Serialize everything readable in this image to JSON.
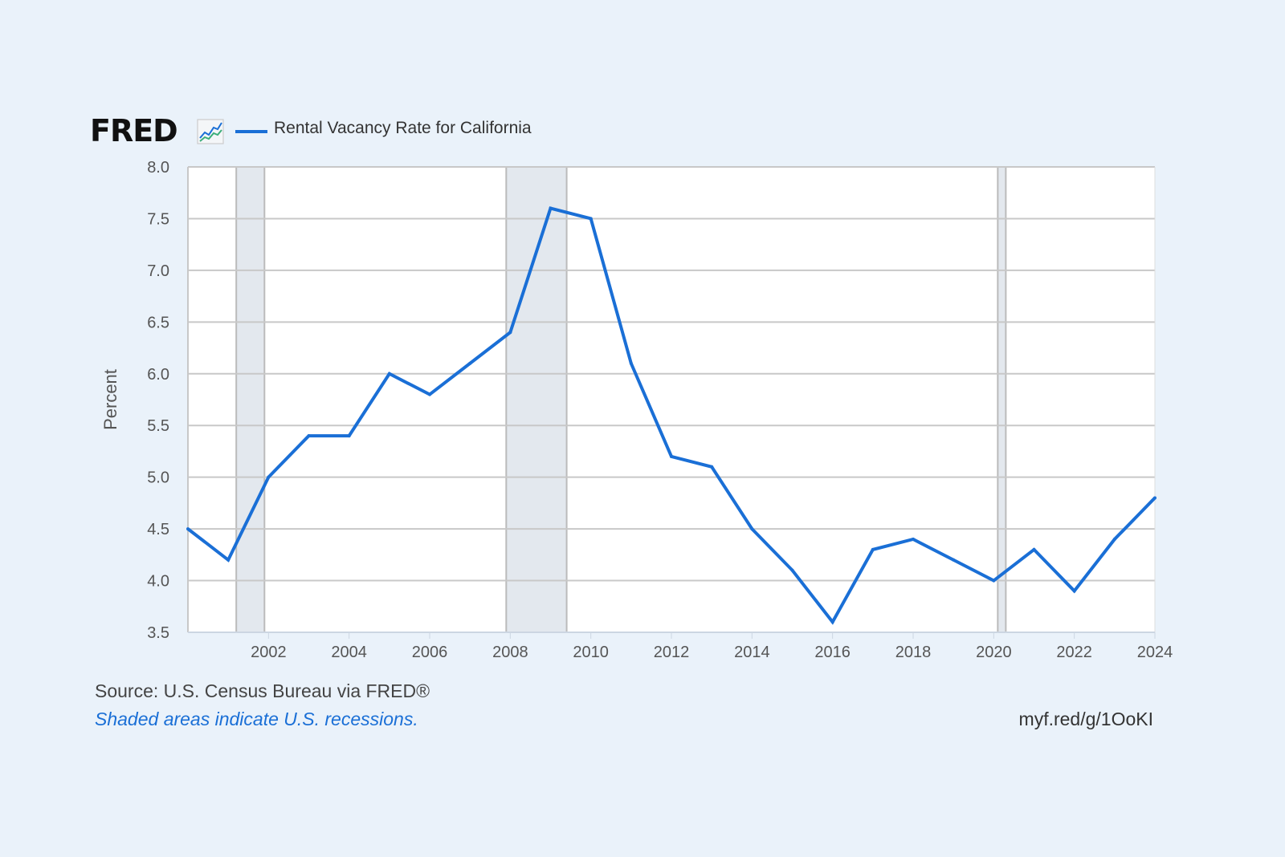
{
  "header": {
    "logo_text": "FRED",
    "logo_icon": "chart-line-icon",
    "legend_label": "Rental Vacancy Rate for California"
  },
  "footer": {
    "source": "Source: U.S. Census Bureau via FRED®",
    "note": "Shaded areas indicate U.S. recessions.",
    "short_url": "myf.red/g/1OoKI"
  },
  "colors": {
    "series": "#1a6fd6",
    "recession": "#e3e8ee",
    "grid": "#c8c8c8",
    "background": "#eaf2fa"
  },
  "chart_data": {
    "type": "line",
    "title": "",
    "xlabel": "",
    "ylabel": "Percent",
    "xlim": [
      2000,
      2024
    ],
    "ylim": [
      3.5,
      8.0
    ],
    "grid": true,
    "legend_position": "top-left",
    "y_ticks": [
      "3.5",
      "4.0",
      "4.5",
      "5.0",
      "5.5",
      "6.0",
      "6.5",
      "7.0",
      "7.5",
      "8.0"
    ],
    "x_ticks": [
      "2002",
      "2004",
      "2006",
      "2008",
      "2010",
      "2012",
      "2014",
      "2016",
      "2018",
      "2020",
      "2022",
      "2024"
    ],
    "recessions": [
      [
        2001.2,
        2001.9
      ],
      [
        2007.9,
        2009.4
      ],
      [
        2020.1,
        2020.3
      ]
    ],
    "series": [
      {
        "name": "Rental Vacancy Rate for California",
        "x": [
          2000,
          2001,
          2002,
          2003,
          2004,
          2005,
          2006,
          2007,
          2008,
          2009,
          2010,
          2011,
          2012,
          2013,
          2014,
          2015,
          2016,
          2017,
          2018,
          2019,
          2020,
          2021,
          2022,
          2023,
          2024
        ],
        "values": [
          4.5,
          4.2,
          5.0,
          5.4,
          5.4,
          6.0,
          5.8,
          6.1,
          6.4,
          7.6,
          7.5,
          6.1,
          5.2,
          5.1,
          4.5,
          4.1,
          3.6,
          4.3,
          4.4,
          4.2,
          4.0,
          4.3,
          3.9,
          4.4,
          4.8
        ]
      }
    ]
  }
}
